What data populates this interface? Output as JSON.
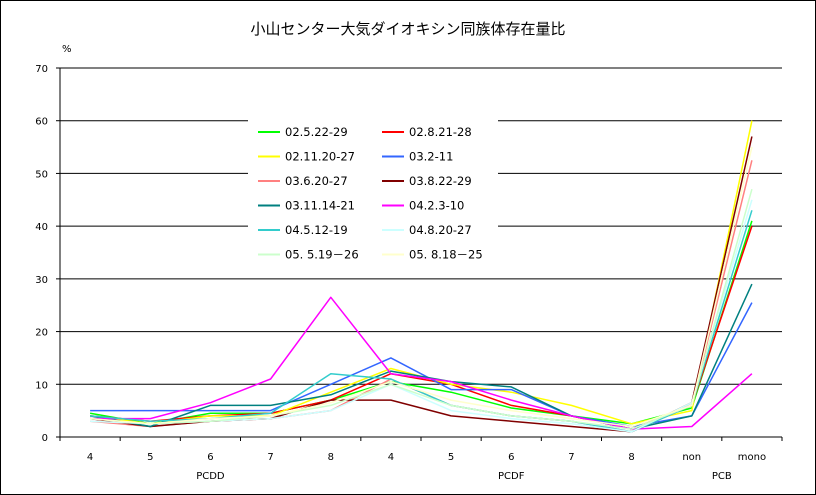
{
  "chart_data": {
    "type": "line",
    "title": "小山センター大気ダイオキシン同族体存在量比",
    "ylabel": "%",
    "ylim": [
      0,
      70
    ],
    "yticks": [
      0,
      10,
      20,
      30,
      40,
      50,
      60,
      70
    ],
    "grid": true,
    "legend_position": "center-left",
    "categories": [
      "4",
      "5",
      "6",
      "7",
      "8",
      "4",
      "5",
      "6",
      "7",
      "8",
      "non",
      "mono"
    ],
    "groups": [
      {
        "label": "PCDD",
        "start": 0,
        "end": 4
      },
      {
        "label": "PCDF",
        "start": 5,
        "end": 9
      },
      {
        "label": "PCB",
        "start": 10,
        "end": 11
      }
    ],
    "series": [
      {
        "name": "02.5.22-29",
        "color": "#00ff00",
        "values": [
          4.5,
          2.5,
          4.5,
          4.5,
          7.0,
          10.5,
          8.5,
          5.5,
          4.0,
          2.5,
          5.5,
          41
        ]
      },
      {
        "name": "02.8.21-28",
        "color": "#ff0000",
        "values": [
          4.0,
          3.0,
          4.0,
          4.5,
          7.0,
          12.0,
          10.0,
          6.0,
          4.0,
          1.5,
          6.0,
          40
        ]
      },
      {
        "name": "02.11.20-27",
        "color": "#ffff00",
        "values": [
          4.0,
          2.5,
          4.0,
          4.0,
          8.5,
          13.0,
          10.0,
          8.5,
          6.0,
          2.5,
          5.0,
          60
        ]
      },
      {
        "name": "03.2-11",
        "color": "#3366ff",
        "values": [
          5.0,
          5.0,
          5.0,
          5.0,
          10.0,
          15.0,
          9.0,
          9.0,
          4.0,
          2.0,
          4.0,
          25.5
        ]
      },
      {
        "name": "03.6.20-27",
        "color": "#ff8080",
        "values": [
          3.0,
          2.0,
          3.0,
          3.5,
          5.0,
          11.0,
          6.0,
          4.0,
          3.0,
          1.0,
          6.0,
          52.5
        ]
      },
      {
        "name": "03.8.22-29",
        "color": "#800000",
        "values": [
          3.5,
          2.0,
          3.0,
          3.5,
          7.0,
          7.0,
          4.0,
          3.0,
          2.0,
          1.0,
          6.5,
          57
        ]
      },
      {
        "name": "03.11.14-21",
        "color": "#008080",
        "values": [
          4.0,
          2.0,
          6.0,
          6.0,
          8.0,
          12.5,
          10.5,
          9.5,
          4.0,
          1.5,
          4.0,
          29
        ]
      },
      {
        "name": "04.2.3-10",
        "color": "#ff00ff",
        "values": [
          3.5,
          3.5,
          6.5,
          11.0,
          26.5,
          12.0,
          10.5,
          7.0,
          4.0,
          1.5,
          2.0,
          12
        ]
      },
      {
        "name": "04.5.12-19",
        "color": "#33cccc",
        "values": [
          4.0,
          3.0,
          3.5,
          4.5,
          12.0,
          11.0,
          6.0,
          4.0,
          3.0,
          1.0,
          6.0,
          43
        ]
      },
      {
        "name": "04.8.20-27",
        "color": "#ccffff",
        "values": [
          3.0,
          2.5,
          3.0,
          3.5,
          5.0,
          10.0,
          5.0,
          3.5,
          2.5,
          1.0,
          6.5,
          45
        ]
      },
      {
        "name": "05. 5.19－26",
        "color": "#ccffcc",
        "values": [
          3.5,
          2.5,
          3.0,
          4.0,
          6.0,
          10.0,
          6.0,
          4.0,
          3.0,
          1.5,
          6.0,
          47
        ]
      },
      {
        "name": "05. 8.18－25",
        "color": "#ffffcc",
        "values": [
          3.5,
          2.5,
          3.5,
          4.0,
          6.5,
          10.5,
          7.0,
          5.0,
          3.5,
          2.0,
          6.0,
          55
        ]
      }
    ]
  }
}
